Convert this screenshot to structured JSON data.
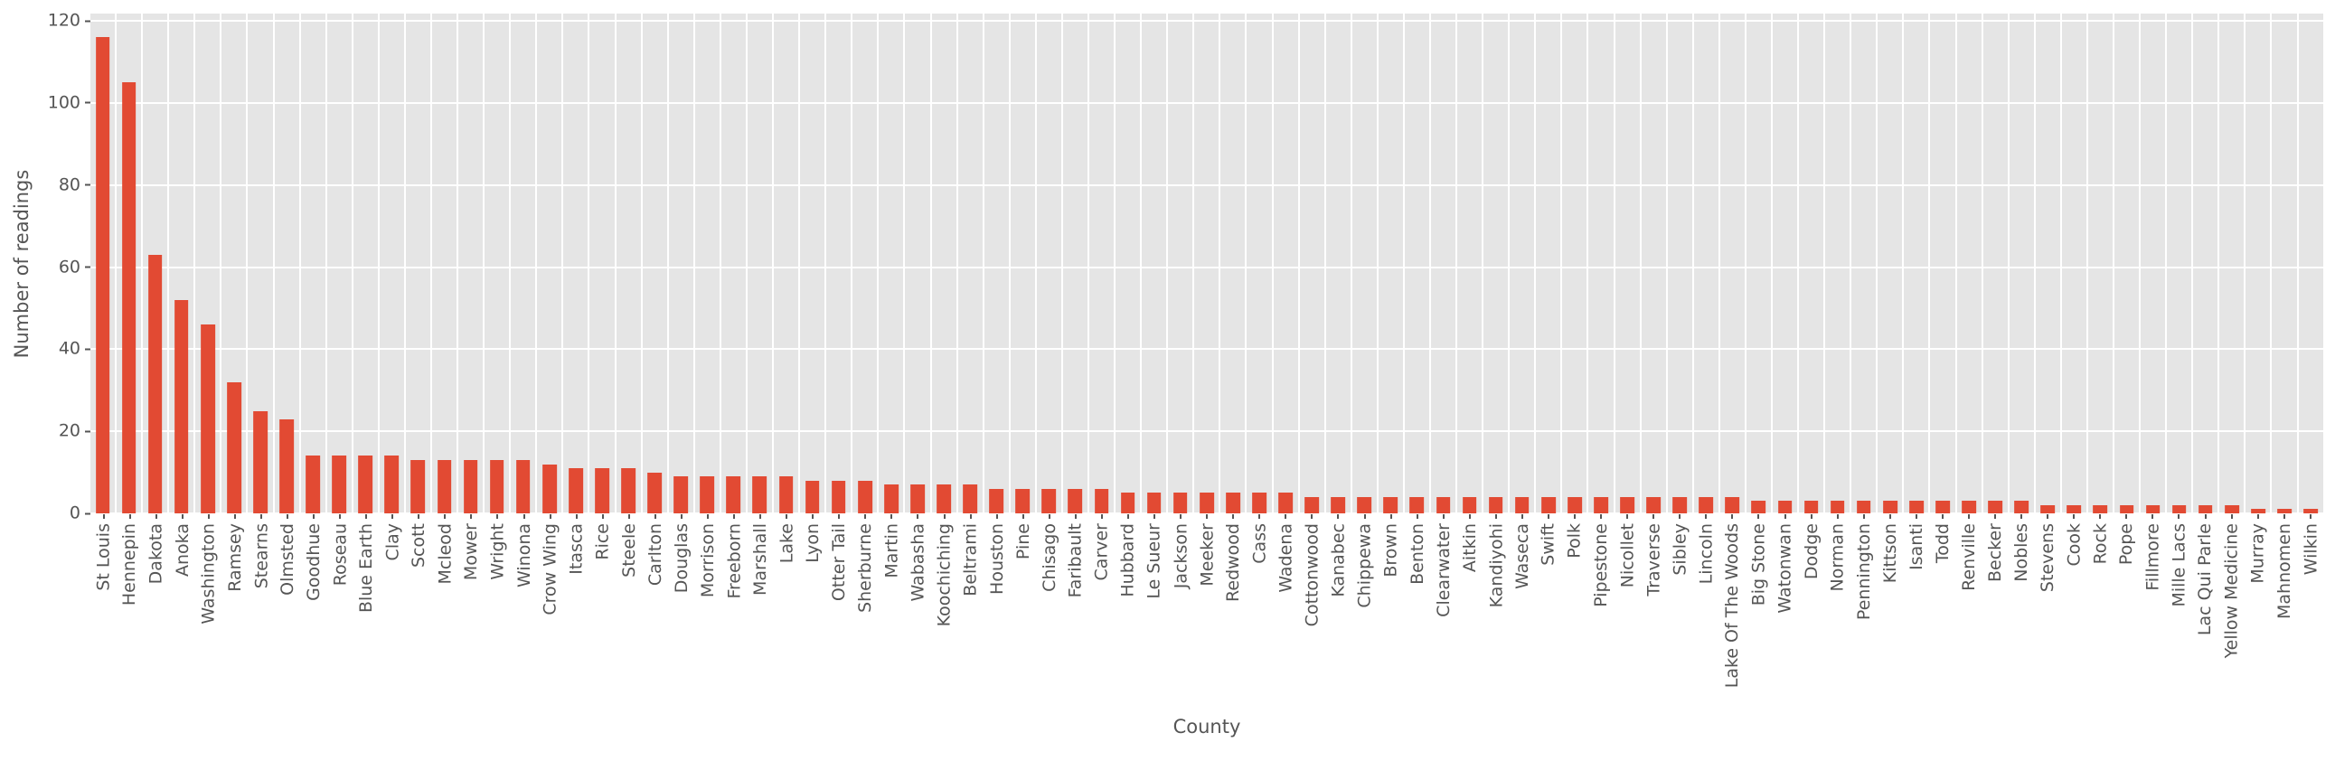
{
  "chart_data": {
    "type": "bar",
    "title": "",
    "xlabel": "County",
    "ylabel": "Number of readings",
    "categories": [
      "St Louis",
      "Hennepin",
      "Dakota",
      "Anoka",
      "Washington",
      "Ramsey",
      "Stearns",
      "Olmsted",
      "Goodhue",
      "Roseau",
      "Blue Earth",
      "Clay",
      "Scott",
      "Mcleod",
      "Mower",
      "Wright",
      "Winona",
      "Crow Wing",
      "Itasca",
      "Rice",
      "Steele",
      "Carlton",
      "Douglas",
      "Morrison",
      "Freeborn",
      "Marshall",
      "Lake",
      "Lyon",
      "Otter Tail",
      "Sherburne",
      "Martin",
      "Wabasha",
      "Koochiching",
      "Beltrami",
      "Houston",
      "Pine",
      "Chisago",
      "Faribault",
      "Carver",
      "Hubbard",
      "Le Sueur",
      "Jackson",
      "Meeker",
      "Redwood",
      "Cass",
      "Wadena",
      "Cottonwood",
      "Kanabec",
      "Chippewa",
      "Brown",
      "Benton",
      "Clearwater",
      "Aitkin",
      "Kandiyohi",
      "Waseca",
      "Swift",
      "Polk",
      "Pipestone",
      "Nicollet",
      "Traverse",
      "Sibley",
      "Lincoln",
      "Lake Of The Woods",
      "Big Stone",
      "Watonwan",
      "Dodge",
      "Norman",
      "Pennington",
      "Kittson",
      "Isanti",
      "Todd",
      "Renville",
      "Becker",
      "Nobles",
      "Stevens",
      "Cook",
      "Rock",
      "Pope",
      "Fillmore",
      "Mille Lacs",
      "Lac Qui Parle",
      "Yellow Medicine",
      "Murray",
      "Mahnomen",
      "Wilkin"
    ],
    "values": [
      116,
      105,
      63,
      52,
      46,
      32,
      25,
      23,
      14,
      14,
      14,
      14,
      13,
      13,
      13,
      13,
      13,
      12,
      11,
      11,
      11,
      10,
      9,
      9,
      9,
      9,
      9,
      8,
      8,
      8,
      7,
      7,
      7,
      7,
      6,
      6,
      6,
      6,
      6,
      5,
      5,
      5,
      5,
      5,
      5,
      5,
      4,
      4,
      4,
      4,
      4,
      4,
      4,
      4,
      4,
      4,
      4,
      4,
      4,
      4,
      4,
      4,
      4,
      3,
      3,
      3,
      3,
      3,
      3,
      3,
      3,
      3,
      3,
      3,
      2,
      2,
      2,
      2,
      2,
      2,
      2,
      2,
      1,
      1,
      1
    ],
    "ylim": [
      0,
      121.8
    ],
    "yticks": [
      0,
      20,
      40,
      60,
      80,
      100,
      120
    ],
    "grid": true,
    "legend": "none",
    "bar_color": "#e24a33",
    "plot_bg": "#e5e5e5",
    "grid_color": "#ffffff",
    "tick_color": "#555555"
  }
}
